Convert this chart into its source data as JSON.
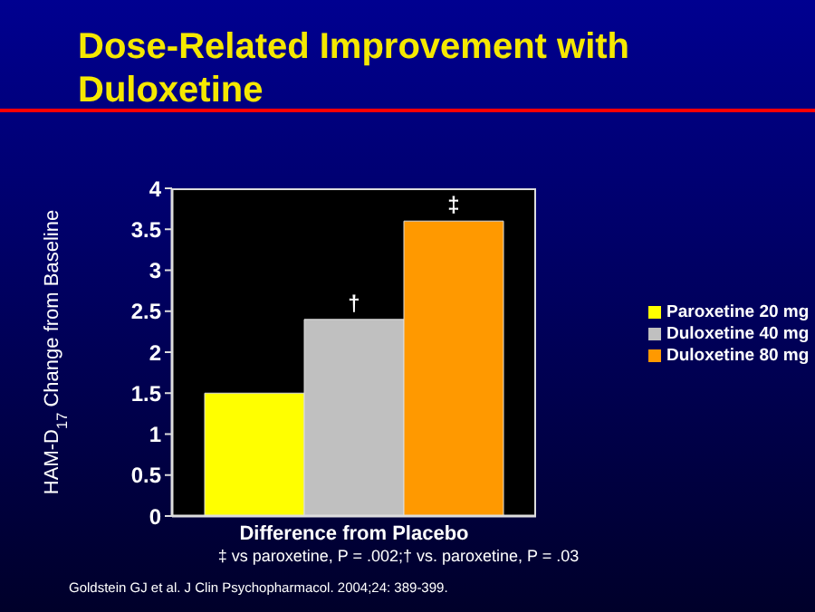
{
  "chart_data": {
    "type": "bar",
    "title": "Dose-Related Improvement with Duloxetine",
    "xlabel": "Difference from Placebo",
    "ylabel": "HAM-D$_{17}$ Change from Baseline",
    "categories": [
      null
    ],
    "series": [
      {
        "name": "Paroxetine 20 mg",
        "color": "#ffff00",
        "values": [
          1.5
        ]
      },
      {
        "name": "Duloxetine 40 mg",
        "color": "#c0c0c0",
        "values": [
          2.4
        ],
        "value_labels": [
          "†"
        ]
      },
      {
        "name": "Duloxetine 80 mg",
        "color": "#ff9900",
        "values": [
          3.6
        ],
        "value_labels": [
          "‡"
        ]
      }
    ],
    "ylim": [
      0,
      4
    ],
    "yticks": [
      0,
      0.5,
      1,
      1.5,
      2,
      2.5,
      3,
      3.5,
      4
    ],
    "grid": false,
    "legend": "right",
    "annotations": [
      "‡ vs paroxetine, P = .002;† vs. paroxetine, P = .03",
      "Goldstein GJ et al. J Clin Psychopharmacol. 2004;24: 389-399."
    ]
  }
}
